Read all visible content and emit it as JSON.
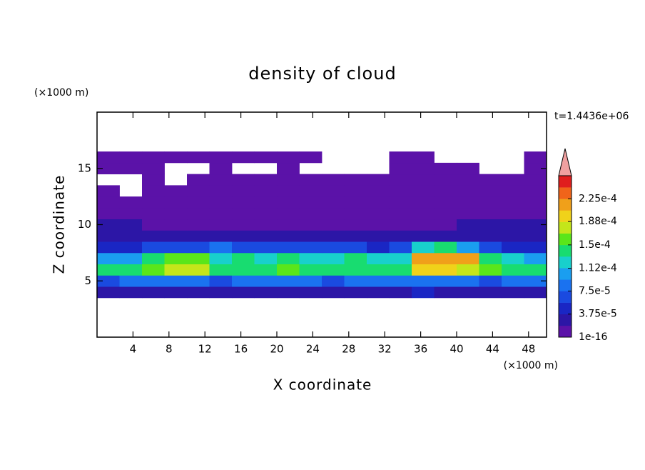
{
  "chart_data": {
    "type": "contour",
    "title": "density of cloud",
    "x_label": "X coordinate",
    "y_label": "Z coordinate",
    "x_unit": "(×1000 m)",
    "y_unit": "(×1000 m)",
    "annotation": "t=1.4436e+06",
    "xlim": [
      0,
      50
    ],
    "ylim": [
      0,
      20
    ],
    "xticks": [
      4,
      8,
      12,
      16,
      20,
      24,
      28,
      32,
      36,
      40,
      44,
      48
    ],
    "yticks": [
      5,
      10,
      15
    ],
    "x": [
      1.25,
      3.75,
      6.25,
      8.75,
      11.25,
      13.75,
      16.25,
      18.75,
      21.25,
      23.75,
      26.25,
      28.75,
      31.25,
      33.75,
      36.25,
      38.75,
      41.25,
      43.75,
      46.25,
      48.75
    ],
    "y": [
      4,
      5,
      6,
      7,
      8,
      9,
      10,
      11,
      12,
      13,
      14,
      15,
      16
    ],
    "z": [
      [
        3.2e-05,
        3.5e-05,
        3e-05,
        3.4e-05,
        3.6e-05,
        3.1e-05,
        3.3e-05,
        3.5e-05,
        3.2e-05,
        3e-05,
        3.4e-05,
        3.3e-05,
        3.1e-05,
        3.5e-05,
        4.2e-05,
        3.3e-05,
        3e-05,
        3.6e-05,
        3.2e-05,
        3.4e-05
      ],
      [
        7.2e-05,
        7.8e-05,
        8.1e-05,
        7.5e-05,
        7.9e-05,
        7.4e-05,
        8.3e-05,
        7.6e-05,
        7.7e-05,
        8e-05,
        7.3e-05,
        7.9e-05,
        7.5e-05,
        8.8e-05,
        8.6e-05,
        8.2e-05,
        7.8e-05,
        7.4e-05,
        7.9e-05,
        7.6e-05
      ],
      [
        0.000132,
        0.000141,
        0.000152,
        0.000178,
        0.000183,
        0.000145,
        0.000138,
        0.000147,
        0.000151,
        0.000143,
        0.000149,
        0.000144,
        0.000136,
        0.000142,
        0.000189,
        0.000195,
        0.000186,
        0.000152,
        0.000146,
        0.000139
      ],
      [
        0.000105,
        0.000112,
        0.000138,
        0.000166,
        0.000158,
        0.000121,
        0.000133,
        0.000128,
        0.000135,
        0.000131,
        0.000127,
        0.000136,
        0.000124,
        0.000118,
        0.000208,
        0.000221,
        0.000212,
        0.000148,
        0.000122,
        0.000109
      ],
      [
        4.8e-05,
        5.3e-05,
        6.1e-05,
        7.2e-05,
        6.8e-05,
        8.4e-05,
        6.2e-05,
        7.1e-05,
        6.5e-05,
        6.8e-05,
        6.1e-05,
        6.4e-05,
        5.6e-05,
        6.3e-05,
        0.000121,
        0.000134,
        0.000105,
        6.1e-05,
        5.4e-05,
        5e-05
      ],
      [
        2.6e-05,
        2.9e-05,
        2.4e-05,
        3.1e-05,
        2.8e-05,
        2.7e-05,
        3.3e-05,
        2.6e-05,
        2.9e-05,
        3.4e-05,
        2.8e-05,
        2.5e-05,
        3e-05,
        2.7e-05,
        3.2e-05,
        3.6e-05,
        2.9e-05,
        2.6e-05,
        3.1e-05,
        2.4e-05
      ],
      [
        1.9e-05,
        2.2e-05,
        1.4e-05,
        1.2e-05,
        1.3e-05,
        1.5e-05,
        1.1e-05,
        1.3e-05,
        1.6e-05,
        1.4e-05,
        1.2e-05,
        1.5e-05,
        1.3e-05,
        1.1e-05,
        1.4e-05,
        1.6e-05,
        1.9e-05,
        2.1e-05,
        2e-05,
        1.9e-05
      ],
      [
        8.1e-06,
        7.4e-06,
        6.2e-06,
        5.8e-06,
        6.6e-06,
        5.9e-06,
        6.3e-06,
        5.5e-06,
        6.1e-06,
        5.7e-06,
        6.4e-06,
        5.2e-06,
        5.8e-06,
        6e-06,
        6.3e-06,
        5.9e-06,
        6.1e-06,
        5.6e-06,
        6.2e-06,
        5.8e-06
      ],
      [
        3.1e-06,
        2.8e-06,
        3.3e-06,
        2.6e-06,
        2.9e-06,
        3.4e-06,
        3e-06,
        2.7e-06,
        3.2e-06,
        3.5e-06,
        2.8e-06,
        3.1e-06,
        2.9e-06,
        3.3e-06,
        3e-06,
        2.7e-06,
        3.2e-06,
        2.9e-06,
        3.1e-06,
        2.8e-06
      ],
      [
        2.1e-06,
        null,
        1.8e-06,
        1.5e-06,
        1.9e-06,
        1.7e-06,
        2e-06,
        1.6e-06,
        1.8e-06,
        2.2e-06,
        1.9e-06,
        1.7e-06,
        2e-06,
        1.8e-06,
        1.6e-06,
        1.9e-06,
        2.1e-06,
        1.8e-06,
        1.7e-06,
        2e-06
      ],
      [
        null,
        null,
        9e-07,
        null,
        8e-07,
        1.1e-06,
        9e-07,
        1.2e-06,
        1e-06,
        1.3e-06,
        1.4e-06,
        1.1e-06,
        1.2e-06,
        9e-07,
        1e-06,
        1.1e-06,
        1.3e-06,
        1.2e-06,
        1e-06,
        1.1e-06
      ],
      [
        5e-07,
        6e-07,
        7e-07,
        null,
        null,
        5e-07,
        null,
        null,
        6e-07,
        null,
        null,
        null,
        null,
        8e-07,
        6e-07,
        7e-07,
        5e-07,
        null,
        null,
        4e-07
      ],
      [
        3e-07,
        4e-07,
        3e-07,
        5e-07,
        4e-07,
        3e-07,
        4e-07,
        5e-07,
        3e-07,
        4e-07,
        null,
        null,
        null,
        3e-07,
        4e-07,
        null,
        null,
        null,
        null,
        2e-07
      ]
    ],
    "levels": [
      1e-16,
      1.875e-05,
      3.75e-05,
      5.625e-05,
      7.5e-05,
      9.375e-05,
      0.0001125,
      0.00013125,
      0.00015,
      0.00016875,
      0.0001875,
      0.00020625,
      0.000225,
      0.00024375
    ],
    "colors": [
      "#5b12a8",
      "#2c16a6",
      "#1a26c4",
      "#1a4ae0",
      "#1a72f0",
      "#1a9ef0",
      "#18d0cc",
      "#18dc70",
      "#5ae61a",
      "#c4e61a",
      "#f0d21a",
      "#f0a01a",
      "#f0641a",
      "#e01e1e"
    ],
    "extend_color": "#f0a0a0",
    "colorbar_ticks": [
      {
        "value": 1e-16,
        "label": "1e-16"
      },
      {
        "value": 3.75e-05,
        "label": "3.75e-5"
      },
      {
        "value": 7.5e-05,
        "label": "7.5e-5"
      },
      {
        "value": 0.000112,
        "label": "1.12e-4"
      },
      {
        "value": 0.00015,
        "label": "1.5e-4"
      },
      {
        "value": 0.000188,
        "label": "1.88e-4"
      },
      {
        "value": 0.000225,
        "label": "2.25e-4"
      }
    ]
  }
}
